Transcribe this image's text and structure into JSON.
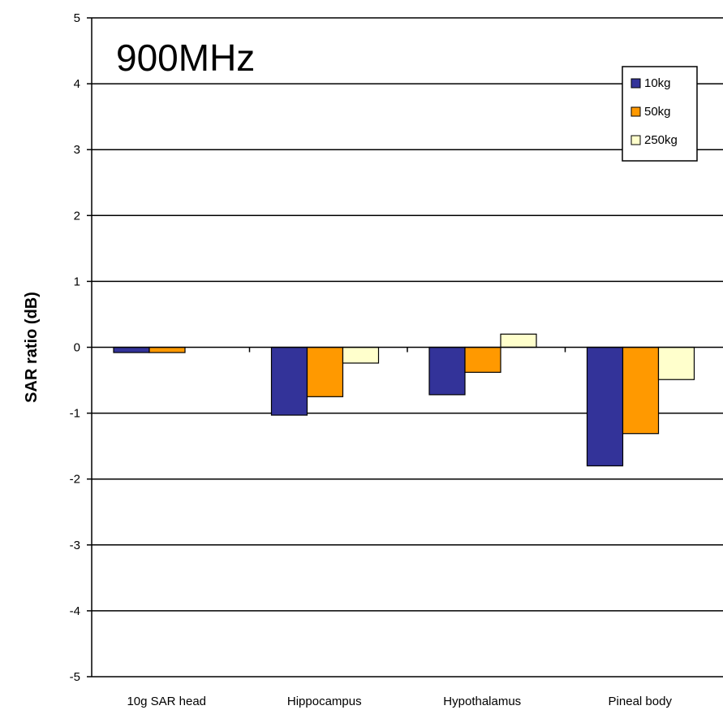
{
  "chart_data": {
    "type": "bar",
    "title": "900MHz",
    "xlabel": "",
    "ylabel": "SAR ratio (dB)",
    "ylim": [
      -5,
      5
    ],
    "yticks": [
      "5",
      "4",
      "3",
      "2",
      "1",
      "0",
      "-1",
      "-2",
      "-3",
      "-4",
      "-5"
    ],
    "categories": [
      "10g SAR head",
      "Hippocampus",
      "Hypothalamus",
      "Pineal body"
    ],
    "series": [
      {
        "name": "10kg",
        "color": "#333399",
        "values": [
          -0.08,
          -1.03,
          -0.72,
          -1.8
        ]
      },
      {
        "name": "50kg",
        "color": "#ff9900",
        "values": [
          -0.08,
          -0.75,
          -0.38,
          -1.31
        ]
      },
      {
        "name": "250kg",
        "color": "#ffffcc",
        "values": [
          null,
          -0.24,
          0.2,
          -0.49
        ]
      }
    ],
    "grid": true,
    "legend": "top-right"
  }
}
